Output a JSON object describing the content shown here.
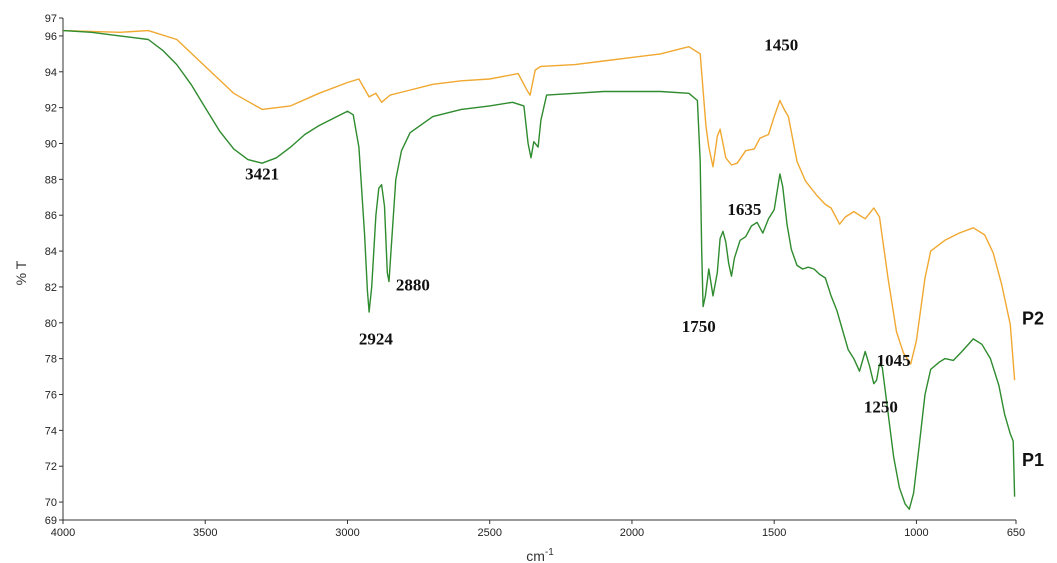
{
  "chart_data": {
    "type": "line",
    "xlabel": "cm",
    "xlabel_sup": "-1",
    "ylabel": "% T",
    "xlim": [
      4000,
      650
    ],
    "ylim": [
      69,
      97
    ],
    "x_ticks": [
      4000,
      3500,
      3000,
      2500,
      2000,
      1500,
      1000,
      650
    ],
    "y_ticks": [
      69,
      70,
      72,
      74,
      76,
      78,
      80,
      82,
      84,
      86,
      88,
      90,
      92,
      94,
      96,
      97
    ],
    "grid": false,
    "series": [
      {
        "name": "P2",
        "color": "#F0A830",
        "points": [
          [
            4000,
            96.3
          ],
          [
            3800,
            96.2
          ],
          [
            3700,
            96.3
          ],
          [
            3600,
            95.8
          ],
          [
            3500,
            94.3
          ],
          [
            3400,
            92.8
          ],
          [
            3300,
            91.9
          ],
          [
            3200,
            92.1
          ],
          [
            3100,
            92.8
          ],
          [
            3000,
            93.4
          ],
          [
            2960,
            93.6
          ],
          [
            2924,
            92.6
          ],
          [
            2900,
            92.8
          ],
          [
            2880,
            92.3
          ],
          [
            2850,
            92.7
          ],
          [
            2800,
            92.9
          ],
          [
            2700,
            93.3
          ],
          [
            2600,
            93.5
          ],
          [
            2500,
            93.6
          ],
          [
            2400,
            93.9
          ],
          [
            2370,
            93.0
          ],
          [
            2358,
            92.7
          ],
          [
            2340,
            94.1
          ],
          [
            2320,
            94.3
          ],
          [
            2200,
            94.4
          ],
          [
            2100,
            94.6
          ],
          [
            2000,
            94.8
          ],
          [
            1900,
            95.0
          ],
          [
            1800,
            95.4
          ],
          [
            1760,
            95.0
          ],
          [
            1740,
            91.0
          ],
          [
            1730,
            89.8
          ],
          [
            1715,
            88.7
          ],
          [
            1700,
            90.4
          ],
          [
            1690,
            90.8
          ],
          [
            1670,
            89.2
          ],
          [
            1650,
            88.8
          ],
          [
            1630,
            88.9
          ],
          [
            1600,
            89.6
          ],
          [
            1570,
            89.7
          ],
          [
            1550,
            90.3
          ],
          [
            1520,
            90.5
          ],
          [
            1500,
            91.5
          ],
          [
            1480,
            92.4
          ],
          [
            1465,
            91.9
          ],
          [
            1450,
            91.5
          ],
          [
            1420,
            89.0
          ],
          [
            1390,
            87.9
          ],
          [
            1350,
            87.1
          ],
          [
            1320,
            86.6
          ],
          [
            1300,
            86.4
          ],
          [
            1270,
            85.5
          ],
          [
            1250,
            85.9
          ],
          [
            1220,
            86.2
          ],
          [
            1180,
            85.8
          ],
          [
            1150,
            86.4
          ],
          [
            1130,
            85.9
          ],
          [
            1100,
            82.5
          ],
          [
            1070,
            79.5
          ],
          [
            1045,
            78.3
          ],
          [
            1020,
            77.7
          ],
          [
            1000,
            79.0
          ],
          [
            970,
            82.5
          ],
          [
            950,
            84.0
          ],
          [
            900,
            84.6
          ],
          [
            850,
            85.0
          ],
          [
            800,
            85.3
          ],
          [
            760,
            84.9
          ],
          [
            730,
            83.9
          ],
          [
            700,
            82.1
          ],
          [
            670,
            79.9
          ],
          [
            655,
            76.8
          ]
        ]
      },
      {
        "name": "P1",
        "color": "#2E8B2E",
        "points": [
          [
            4000,
            96.3
          ],
          [
            3900,
            96.2
          ],
          [
            3800,
            96.0
          ],
          [
            3750,
            95.9
          ],
          [
            3700,
            95.8
          ],
          [
            3650,
            95.2
          ],
          [
            3600,
            94.4
          ],
          [
            3550,
            93.3
          ],
          [
            3500,
            92.0
          ],
          [
            3450,
            90.7
          ],
          [
            3400,
            89.7
          ],
          [
            3350,
            89.1
          ],
          [
            3300,
            88.9
          ],
          [
            3250,
            89.2
          ],
          [
            3200,
            89.8
          ],
          [
            3150,
            90.5
          ],
          [
            3100,
            91.0
          ],
          [
            3050,
            91.4
          ],
          [
            3000,
            91.8
          ],
          [
            2980,
            91.6
          ],
          [
            2960,
            89.8
          ],
          [
            2940,
            85.0
          ],
          [
            2930,
            81.8
          ],
          [
            2924,
            80.6
          ],
          [
            2915,
            82.0
          ],
          [
            2900,
            86.0
          ],
          [
            2890,
            87.5
          ],
          [
            2880,
            87.7
          ],
          [
            2870,
            86.5
          ],
          [
            2860,
            82.8
          ],
          [
            2854,
            82.3
          ],
          [
            2845,
            84.5
          ],
          [
            2830,
            88.0
          ],
          [
            2810,
            89.6
          ],
          [
            2780,
            90.6
          ],
          [
            2700,
            91.5
          ],
          [
            2600,
            91.9
          ],
          [
            2500,
            92.1
          ],
          [
            2420,
            92.3
          ],
          [
            2380,
            92.1
          ],
          [
            2365,
            90.0
          ],
          [
            2355,
            89.2
          ],
          [
            2345,
            90.1
          ],
          [
            2330,
            89.8
          ],
          [
            2320,
            91.3
          ],
          [
            2300,
            92.7
          ],
          [
            2200,
            92.8
          ],
          [
            2100,
            92.9
          ],
          [
            2000,
            92.9
          ],
          [
            1900,
            92.9
          ],
          [
            1800,
            92.8
          ],
          [
            1770,
            92.4
          ],
          [
            1760,
            89.0
          ],
          [
            1755,
            84.0
          ],
          [
            1750,
            80.9
          ],
          [
            1742,
            81.5
          ],
          [
            1730,
            83.0
          ],
          [
            1715,
            81.5
          ],
          [
            1700,
            82.8
          ],
          [
            1690,
            84.7
          ],
          [
            1680,
            85.1
          ],
          [
            1670,
            84.5
          ],
          [
            1660,
            83.3
          ],
          [
            1650,
            82.6
          ],
          [
            1640,
            83.6
          ],
          [
            1620,
            84.6
          ],
          [
            1600,
            84.8
          ],
          [
            1580,
            85.4
          ],
          [
            1560,
            85.6
          ],
          [
            1540,
            85.0
          ],
          [
            1520,
            85.8
          ],
          [
            1500,
            86.3
          ],
          [
            1480,
            88.3
          ],
          [
            1470,
            87.6
          ],
          [
            1455,
            85.5
          ],
          [
            1440,
            84.1
          ],
          [
            1420,
            83.2
          ],
          [
            1400,
            83.0
          ],
          [
            1380,
            83.1
          ],
          [
            1360,
            83.0
          ],
          [
            1340,
            82.7
          ],
          [
            1320,
            82.5
          ],
          [
            1300,
            81.5
          ],
          [
            1280,
            80.7
          ],
          [
            1260,
            79.6
          ],
          [
            1240,
            78.5
          ],
          [
            1220,
            78.0
          ],
          [
            1200,
            77.3
          ],
          [
            1180,
            78.4
          ],
          [
            1165,
            77.6
          ],
          [
            1150,
            76.6
          ],
          [
            1140,
            76.8
          ],
          [
            1130,
            77.7
          ],
          [
            1120,
            77.5
          ],
          [
            1100,
            75.0
          ],
          [
            1080,
            72.5
          ],
          [
            1060,
            70.8
          ],
          [
            1040,
            69.9
          ],
          [
            1025,
            69.6
          ],
          [
            1010,
            70.5
          ],
          [
            990,
            73.2
          ],
          [
            970,
            76.0
          ],
          [
            950,
            77.4
          ],
          [
            920,
            77.8
          ],
          [
            900,
            78.0
          ],
          [
            870,
            77.9
          ],
          [
            840,
            78.4
          ],
          [
            800,
            79.1
          ],
          [
            770,
            78.8
          ],
          [
            740,
            78.0
          ],
          [
            710,
            76.5
          ],
          [
            690,
            74.9
          ],
          [
            670,
            73.8
          ],
          [
            660,
            73.4
          ],
          [
            655,
            70.3
          ]
        ]
      }
    ],
    "annotations": [
      {
        "text": "3421",
        "x": 3300,
        "y": 88.0
      },
      {
        "text": "2924",
        "x": 2900,
        "y": 78.8
      },
      {
        "text": "2880",
        "x": 2770,
        "y": 81.8
      },
      {
        "text": "1750",
        "x": 1765,
        "y": 79.5
      },
      {
        "text": "1635",
        "x": 1605,
        "y": 86.0
      },
      {
        "text": "1450",
        "x": 1475,
        "y": 95.2
      },
      {
        "text": "1250",
        "x": 1125,
        "y": 75.0
      },
      {
        "text": "1045",
        "x": 1080,
        "y": 77.6
      }
    ],
    "series_labels": [
      {
        "text": "P2",
        "x": 590,
        "y": 79.9
      },
      {
        "text": "P1",
        "x": 590,
        "y": 72.0
      }
    ]
  }
}
